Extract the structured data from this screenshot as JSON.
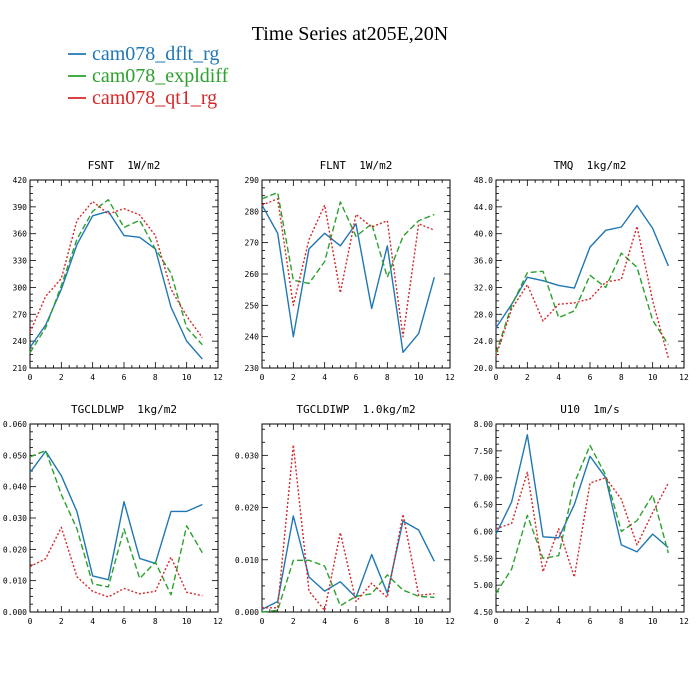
{
  "title": "Time Series at205E,20N",
  "legend": [
    {
      "name": "cam078_dflt_rg",
      "color": "#1f77b4",
      "dash": "solid"
    },
    {
      "name": "cam078_expldiff",
      "color": "#2ca02c",
      "dash": "dashed"
    },
    {
      "name": "cam078_qt1_rg",
      "color": "#d62728",
      "dash": "dotted"
    }
  ],
  "chart_data": [
    {
      "type": "line",
      "title": "FSNT  1W/m2",
      "x": [
        0,
        1,
        2,
        3,
        4,
        5,
        6,
        7,
        8,
        9,
        10,
        11
      ],
      "xlim": [
        0,
        12
      ],
      "xticks": [
        "0",
        "2",
        "4",
        "6",
        "8",
        "10",
        "12"
      ],
      "ylim": [
        210,
        420
      ],
      "yticks": [
        "210",
        "240",
        "270",
        "300",
        "330",
        "360",
        "390",
        "420"
      ],
      "series": [
        {
          "name": "cam078_dflt_rg",
          "values": [
            233,
            258,
            298,
            348,
            380,
            385,
            358,
            356,
            343,
            278,
            240,
            220
          ]
        },
        {
          "name": "cam078_expldiff",
          "values": [
            227,
            255,
            302,
            354,
            385,
            398,
            367,
            375,
            343,
            316,
            255,
            236
          ]
        },
        {
          "name": "cam078_qt1_rg",
          "values": [
            250,
            290,
            310,
            375,
            396,
            382,
            388,
            381,
            358,
            298,
            268,
            244
          ]
        }
      ]
    },
    {
      "type": "line",
      "title": "FLNT  1W/m2",
      "x": [
        0,
        1,
        2,
        3,
        4,
        5,
        6,
        7,
        8,
        9,
        10,
        11
      ],
      "xlim": [
        0,
        12
      ],
      "xticks": [
        "0",
        "2",
        "4",
        "6",
        "8",
        "10",
        "12"
      ],
      "ylim": [
        230,
        290
      ],
      "yticks": [
        "230",
        "240",
        "250",
        "260",
        "270",
        "280",
        "290"
      ],
      "series": [
        {
          "name": "cam078_dflt_rg",
          "values": [
            282,
            273,
            240,
            268,
            273,
            269,
            276,
            249,
            269,
            235,
            241,
            259
          ]
        },
        {
          "name": "cam078_expldiff",
          "values": [
            284,
            286,
            258,
            257,
            264,
            283,
            272,
            276,
            259,
            272,
            277,
            279
          ]
        },
        {
          "name": "cam078_qt1_rg",
          "values": [
            282,
            284,
            250,
            271,
            282,
            254,
            279,
            275,
            277,
            240,
            276,
            274
          ]
        }
      ]
    },
    {
      "type": "line",
      "title": "TMQ  1kg/m2",
      "x": [
        0,
        1,
        2,
        3,
        4,
        5,
        6,
        7,
        8,
        9,
        10,
        11
      ],
      "xlim": [
        0,
        12
      ],
      "xticks": [
        "0",
        "2",
        "4",
        "6",
        "8",
        "10",
        "12"
      ],
      "ylim": [
        20.0,
        48.0
      ],
      "yticks": [
        "20.0",
        "24.0",
        "28.0",
        "32.0",
        "36.0",
        "40.0",
        "44.0",
        "48.0"
      ],
      "series": [
        {
          "name": "cam078_dflt_rg",
          "values": [
            26.0,
            29.5,
            33.5,
            33.0,
            32.3,
            31.9,
            38.0,
            40.5,
            41.0,
            44.2,
            40.8,
            35.2
          ]
        },
        {
          "name": "cam078_expldiff",
          "values": [
            22.2,
            29.3,
            34.2,
            34.4,
            27.5,
            28.5,
            33.8,
            32.0,
            37.1,
            35.0,
            27.1,
            23.5
          ]
        },
        {
          "name": "cam078_qt1_rg",
          "values": [
            21.8,
            28.8,
            32.4,
            27.0,
            29.5,
            29.7,
            30.3,
            32.8,
            33.2,
            41.1,
            30.0,
            21.5
          ]
        }
      ]
    },
    {
      "type": "line",
      "title": "TGCLDLWP  1kg/m2",
      "x": [
        0,
        1,
        2,
        3,
        4,
        5,
        6,
        7,
        8,
        9,
        10,
        11
      ],
      "xlim": [
        0,
        12
      ],
      "xticks": [
        "0",
        "2",
        "4",
        "6",
        "8",
        "10",
        "12"
      ],
      "ylim": [
        0.0,
        0.06
      ],
      "yticks": [
        "0.000",
        "0.010",
        "0.020",
        "0.030",
        "0.040",
        "0.050",
        "0.060"
      ],
      "series": [
        {
          "name": "cam078_dflt_rg",
          "values": [
            0.0445,
            0.0513,
            0.0435,
            0.032,
            0.0115,
            0.0103,
            0.0352,
            0.0171,
            0.0155,
            0.0321,
            0.0321,
            0.0343
          ]
        },
        {
          "name": "cam078_expldiff",
          "values": [
            0.0495,
            0.0515,
            0.0375,
            0.0265,
            0.009,
            0.008,
            0.0265,
            0.0107,
            0.0159,
            0.0055,
            0.0275,
            0.0189
          ]
        },
        {
          "name": "cam078_qt1_rg",
          "values": [
            0.0145,
            0.017,
            0.027,
            0.0112,
            0.0066,
            0.0048,
            0.0075,
            0.0058,
            0.0066,
            0.0175,
            0.0063,
            0.0052
          ]
        }
      ]
    },
    {
      "type": "line",
      "title": "TGCLDIWP  1.0kg/m2",
      "x": [
        0,
        1,
        2,
        3,
        4,
        5,
        6,
        7,
        8,
        9,
        10,
        11
      ],
      "xlim": [
        0,
        12
      ],
      "xticks": [
        "0",
        "2",
        "4",
        "6",
        "8",
        "10",
        "12"
      ],
      "ylim": [
        0.0,
        0.036
      ],
      "yticks": [
        "0.000",
        "0.010",
        "0.020",
        "0.030"
      ],
      "series": [
        {
          "name": "cam078_dflt_rg",
          "values": [
            0.0005,
            0.002,
            0.0184,
            0.0067,
            0.004,
            0.0058,
            0.0028,
            0.011,
            0.0036,
            0.0174,
            0.0157,
            0.0097
          ]
        },
        {
          "name": "cam078_expldiff",
          "values": [
            0.0,
            0.0003,
            0.0099,
            0.0099,
            0.0088,
            0.0012,
            0.003,
            0.0035,
            0.0071,
            0.0042,
            0.003,
            0.0028
          ]
        },
        {
          "name": "cam078_qt1_rg",
          "values": [
            0.0008,
            0.0008,
            0.032,
            0.004,
            0.0003,
            0.0152,
            0.002,
            0.0055,
            0.0028,
            0.0187,
            0.0032,
            0.0035
          ]
        }
      ]
    },
    {
      "type": "line",
      "title": "U10  1m/s",
      "x": [
        0,
        1,
        2,
        3,
        4,
        5,
        6,
        7,
        8,
        9,
        10,
        11
      ],
      "xlim": [
        0,
        12
      ],
      "xticks": [
        "0",
        "2",
        "4",
        "6",
        "8",
        "10",
        "12"
      ],
      "ylim": [
        4.5,
        8.0
      ],
      "yticks": [
        "4.50",
        "5.00",
        "5.50",
        "6.00",
        "6.50",
        "7.00",
        "7.50",
        "8.00"
      ],
      "series": [
        {
          "name": "cam078_dflt_rg",
          "values": [
            5.95,
            6.55,
            7.8,
            5.9,
            5.88,
            6.5,
            7.4,
            7.0,
            5.75,
            5.62,
            5.95,
            5.7
          ]
        },
        {
          "name": "cam078_expldiff",
          "values": [
            4.85,
            5.3,
            6.3,
            5.5,
            5.55,
            6.9,
            7.6,
            7.05,
            6.0,
            6.2,
            6.68,
            5.6
          ]
        },
        {
          "name": "cam078_qt1_rg",
          "values": [
            6.05,
            6.15,
            7.1,
            5.25,
            6.05,
            5.15,
            6.9,
            7.0,
            6.6,
            5.75,
            6.35,
            6.9
          ]
        }
      ]
    }
  ]
}
